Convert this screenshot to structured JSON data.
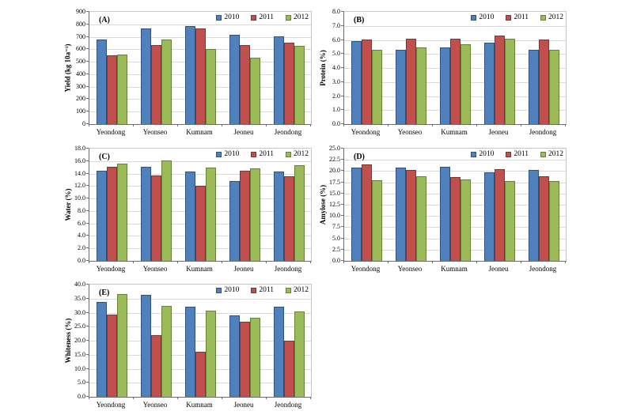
{
  "figure": {
    "background_color": "#ffffff",
    "series_names": [
      "2010",
      "2011",
      "2012"
    ],
    "series_fill_colors": [
      "#4f81bd",
      "#c0504d",
      "#9bbb59"
    ],
    "series_border_colors": [
      "#30517b",
      "#7e3533",
      "#67803a"
    ],
    "gridline_color": "#d9d9d9",
    "legend_position": "top-right-inside"
  },
  "chart_data": [
    {
      "type": "bar",
      "panel_label": "(A)",
      "ylabel": "Yield (kg 10a⁻¹)",
      "xlabel": "",
      "ylim": [
        0,
        900
      ],
      "ytick_labels": [
        "0",
        "100",
        "200",
        "300",
        "400",
        "500",
        "600",
        "700",
        "800",
        "900"
      ],
      "grid": true,
      "categories": [
        "Yeondong",
        "Yeonseo",
        "Kumnam",
        "Jeoneu",
        "Jeondong"
      ],
      "series": [
        {
          "name": "2010",
          "values": [
            675,
            770,
            785,
            715,
            705
          ]
        },
        {
          "name": "2011",
          "values": [
            550,
            635,
            765,
            635,
            650
          ]
        },
        {
          "name": "2012",
          "values": [
            555,
            675,
            600,
            530,
            625
          ]
        }
      ]
    },
    {
      "type": "bar",
      "panel_label": "(B)",
      "ylabel": "Protein (%)",
      "xlabel": "",
      "ylim": [
        0,
        8
      ],
      "ytick_labels": [
        "0.0",
        "1.0",
        "2.0",
        "3.0",
        "4.0",
        "5.0",
        "6.0",
        "7.0",
        "8.0"
      ],
      "grid": true,
      "categories": [
        "Yeondong",
        "Yeonseo",
        "Kumnam",
        "Jeoneu",
        "Jeondong"
      ],
      "series": [
        {
          "name": "2010",
          "values": [
            5.9,
            5.3,
            5.45,
            5.8,
            5.3
          ]
        },
        {
          "name": "2011",
          "values": [
            6.0,
            6.1,
            6.1,
            6.3,
            6.0
          ]
        },
        {
          "name": "2012",
          "values": [
            5.3,
            5.45,
            5.7,
            6.1,
            5.3
          ]
        }
      ]
    },
    {
      "type": "bar",
      "panel_label": "(C)",
      "ylabel": "Water (%)",
      "xlabel": "",
      "ylim": [
        0,
        18
      ],
      "ytick_labels": [
        "0.0",
        "2.0",
        "4.0",
        "6.0",
        "8.0",
        "10.0",
        "12.0",
        "14.0",
        "16.0",
        "18.0"
      ],
      "grid": true,
      "categories": [
        "Yeondong",
        "Yeonseo",
        "Kumnam",
        "Jeoneu",
        "Jeondong"
      ],
      "series": [
        {
          "name": "2010",
          "values": [
            14.5,
            15.1,
            14.3,
            12.8,
            14.3
          ]
        },
        {
          "name": "2011",
          "values": [
            15.1,
            13.7,
            12.1,
            14.5,
            13.6
          ]
        },
        {
          "name": "2012",
          "values": [
            15.6,
            16.1,
            15.0,
            14.8,
            15.4
          ]
        }
      ]
    },
    {
      "type": "bar",
      "panel_label": "(D)",
      "ylabel": "Amylose (%)",
      "xlabel": "",
      "ylim": [
        0,
        25
      ],
      "ytick_labels": [
        "0.0",
        "2.5",
        "5.0",
        "7.5",
        "10.0",
        "12.5",
        "15.0",
        "17.5",
        "20.0",
        "22.5",
        "25.0"
      ],
      "grid": true,
      "categories": [
        "Yeondong",
        "Yeonseo",
        "Kumnam",
        "Jeoneu",
        "Jeondong"
      ],
      "series": [
        {
          "name": "2010",
          "values": [
            20.7,
            20.8,
            20.9,
            19.7,
            20.2
          ]
        },
        {
          "name": "2011",
          "values": [
            21.5,
            20.2,
            18.7,
            20.4,
            18.9
          ]
        },
        {
          "name": "2012",
          "values": [
            18.0,
            18.9,
            18.2,
            17.7,
            17.8
          ]
        }
      ]
    },
    {
      "type": "bar",
      "panel_label": "(E)",
      "ylabel": "Whiteness (%)",
      "xlabel": "",
      "ylim": [
        0,
        40
      ],
      "ytick_labels": [
        "0.0",
        "5.0",
        "10.0",
        "15.0",
        "20.0",
        "25.0",
        "30.0",
        "35.0",
        "40.0"
      ],
      "grid": true,
      "categories": [
        "Yeondong",
        "Yeonseo",
        "Kumnam",
        "Jeoneu",
        "Jeondong"
      ],
      "series": [
        {
          "name": "2010",
          "values": [
            33.7,
            36.4,
            32.0,
            29.0,
            32.0
          ]
        },
        {
          "name": "2011",
          "values": [
            29.2,
            22.0,
            16.1,
            26.7,
            20.0
          ]
        },
        {
          "name": "2012",
          "values": [
            36.7,
            32.3,
            30.8,
            28.1,
            30.5
          ]
        }
      ]
    }
  ]
}
